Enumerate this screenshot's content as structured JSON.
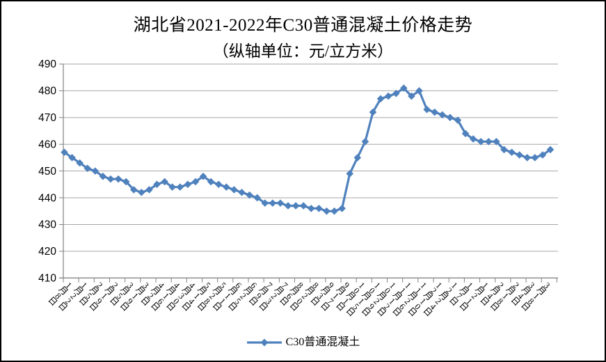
{
  "chart": {
    "title": "湖北省2021-2022年C30普通混凝土价格走势",
    "subtitle": "（纵轴单位：元/立方米）",
    "legend_label": "C30普通混凝土"
  },
  "chart_data": {
    "type": "line",
    "title": "湖北省2021-2022年C30普通混凝土价格走势",
    "subtitle": "（纵轴单位：元/立方米）",
    "ylabel": "元/立方米",
    "xlabel": "",
    "ylim": [
      410,
      490
    ],
    "y_ticks": [
      410,
      420,
      430,
      440,
      450,
      460,
      470,
      480,
      490
    ],
    "grid": "horizontal",
    "legend_position": "bottom",
    "x_label_interval": 2,
    "x_label_offset": 1,
    "categories": [
      "1月1日",
      "1月8日",
      "1月15日",
      "1月22日",
      "1月29日",
      "2月5日",
      "2月12日",
      "2月19日",
      "2月26日",
      "3月5日",
      "3月12日",
      "3月19日",
      "3月26日",
      "4月2日",
      "4月9日",
      "4月16日",
      "4月23日",
      "4月30日",
      "5月7日",
      "5月14日",
      "5月21日",
      "5月28日",
      "6月4日",
      "6月11日",
      "6月18日",
      "6月25日",
      "7月2日",
      "7月9日",
      "7月16日",
      "7月23日",
      "7月30日",
      "8月6日",
      "8月13日",
      "8月20日",
      "8月27日",
      "9月3日",
      "9月10日",
      "9月17日",
      "9月24日",
      "10月1日",
      "10月8日",
      "10月15日",
      "10月22日",
      "10月29日",
      "11月5日",
      "11月12日",
      "11月19日",
      "11月26日",
      "12月3日",
      "12月10日",
      "12月17日",
      "12月24日",
      "12月31日",
      "1月7日",
      "1月14日",
      "1月21日",
      "1月28日",
      "2月4日",
      "2月11日",
      "2月18日",
      "2月25日",
      "3月4日",
      "3月11日",
      "3月18日"
    ],
    "series": [
      {
        "name": "C30普通混凝土",
        "color": "#4F81BD",
        "marker": "diamond",
        "values": [
          457,
          455,
          453,
          451,
          450,
          448,
          447,
          447,
          446,
          443,
          442,
          443,
          445,
          446,
          444,
          444,
          445,
          446,
          448,
          446,
          445,
          444,
          443,
          442,
          441,
          440,
          438,
          438,
          438,
          437,
          437,
          437,
          436,
          436,
          435,
          435,
          436,
          449,
          455,
          461,
          472,
          477,
          478,
          479,
          481,
          478,
          480,
          473,
          472,
          471,
          470,
          469,
          464,
          462,
          461,
          461,
          461,
          458,
          457,
          456,
          455,
          455,
          456,
          458
        ]
      }
    ],
    "colors": {
      "series_blue": "#4F81BD",
      "gridline_gray": "#A6A6A6",
      "axis_gray": "#808080",
      "text_black": "#000000"
    }
  }
}
